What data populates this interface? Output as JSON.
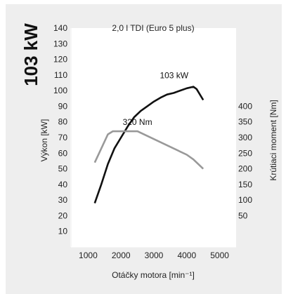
{
  "badge": {
    "power_text": "103 kW"
  },
  "chart_data": {
    "type": "line",
    "title": "2,0 l TDI (Euro 5 plus)",
    "xlabel": "Otáčky motora [min⁻¹]",
    "ylabel_left": "Výkon [kW]",
    "ylabel_right": "Krútiaci moment [Nm]",
    "xlim": [
      500,
      5500
    ],
    "xticks": [
      1000,
      2000,
      3000,
      4000,
      5000
    ],
    "ylim_left": [
      0,
      140
    ],
    "yticks_left": [
      10,
      20,
      30,
      40,
      50,
      60,
      70,
      80,
      90,
      100,
      110,
      120,
      130,
      140
    ],
    "ylim_right": [
      -50,
      650
    ],
    "yticks_right": [
      50,
      100,
      150,
      200,
      250,
      300,
      350,
      400
    ],
    "grid": false,
    "series": [
      {
        "name": "103 kW",
        "axis": "left",
        "color": "#111111",
        "x": [
          1200,
          1400,
          1600,
          1800,
          2000,
          2200,
          2400,
          2600,
          2800,
          3000,
          3200,
          3400,
          3600,
          3800,
          4000,
          4200,
          4300,
          4500
        ],
        "y": [
          28,
          40,
          53,
          63,
          70,
          77,
          83,
          87,
          90,
          93,
          95.5,
          97.5,
          98.5,
          100,
          101.5,
          102.5,
          101,
          94
        ]
      },
      {
        "name": "320 Nm",
        "axis": "right",
        "color": "#999999",
        "x": [
          1200,
          1600,
          1750,
          2500,
          4000,
          4200,
          4500
        ],
        "y": [
          220,
          310,
          320,
          320,
          245,
          230,
          200
        ]
      }
    ]
  }
}
